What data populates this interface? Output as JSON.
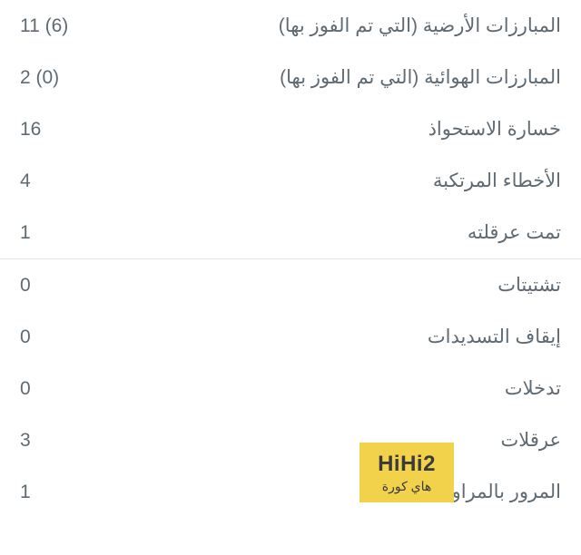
{
  "stats_top": [
    {
      "label": "المبارزات الأرضية (التي تم الفوز بها)",
      "value": "11 (6)"
    },
    {
      "label": "المبارزات الهوائية (التي تم الفوز بها)",
      "value": "2 (0)"
    },
    {
      "label": "خسارة الاستحواذ",
      "value": "16"
    },
    {
      "label": "الأخطاء المرتكبة",
      "value": "4"
    },
    {
      "label": "تمت عرقلته",
      "value": "1"
    }
  ],
  "stats_bottom": [
    {
      "label": "تشتيتات",
      "value": "0"
    },
    {
      "label": "إيقاف التسديدات",
      "value": "0"
    },
    {
      "label": "تدخلات",
      "value": "0"
    },
    {
      "label": "عرقلات",
      "value": "3"
    },
    {
      "label": "المرور بالمراوغة",
      "value": "1"
    }
  ],
  "styling": {
    "text_color": "#5f6a73",
    "bg_color": "#ffffff",
    "divider_color": "#e1e4e8",
    "font_size": 21,
    "row_padding_v": 16,
    "row_padding_h": 22
  },
  "watermark": {
    "main": "HiHi2",
    "sub": "هاي كورة",
    "bg_color": "#f2d24b",
    "text_color": "#3a3a3a"
  }
}
